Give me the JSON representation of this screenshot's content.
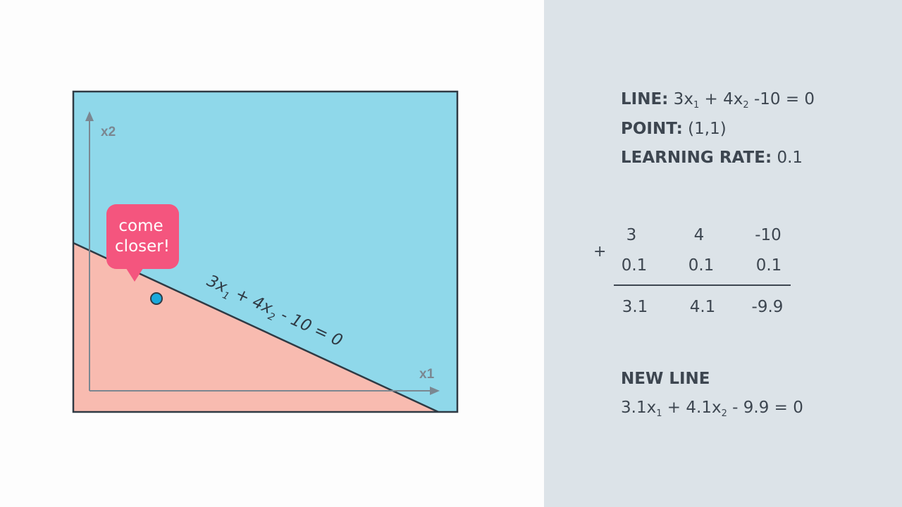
{
  "diagram": {
    "x_axis_label": "x1",
    "y_axis_label": "x2",
    "line_equation": {
      "c1": "3x",
      "s1": "1",
      "mid": " + 4x",
      "s2": "2",
      "end": " - 10 = 0"
    },
    "bubble_line1": "come",
    "bubble_line2": "closer!",
    "colors": {
      "positive_region": "#8fd8ea",
      "negative_region": "#f8bbb0",
      "point": "#1aa9dc",
      "bubble": "#f4557e"
    }
  },
  "info": {
    "line_label": "LINE:",
    "line_eq": {
      "c1": " 3x",
      "s1": "1",
      "mid": " + 4x",
      "s2": "2",
      "end": " -10 = 0"
    },
    "point_label": "POINT:",
    "point_value": " (1,1)",
    "lr_label": "LEARNING RATE:",
    "lr_value": " 0.1"
  },
  "addition": {
    "operator": "+",
    "row1": [
      "3",
      "4",
      "-10"
    ],
    "row2": [
      "0.1",
      "0.1",
      "0.1"
    ],
    "result": [
      "3.1",
      "4.1",
      "-9.9"
    ]
  },
  "new_line": {
    "label": "NEW LINE",
    "eq": {
      "c1": "3.1x",
      "s1": "1",
      "mid": " + 4.1x",
      "s2": "2",
      "end": " - 9.9 = 0"
    }
  }
}
